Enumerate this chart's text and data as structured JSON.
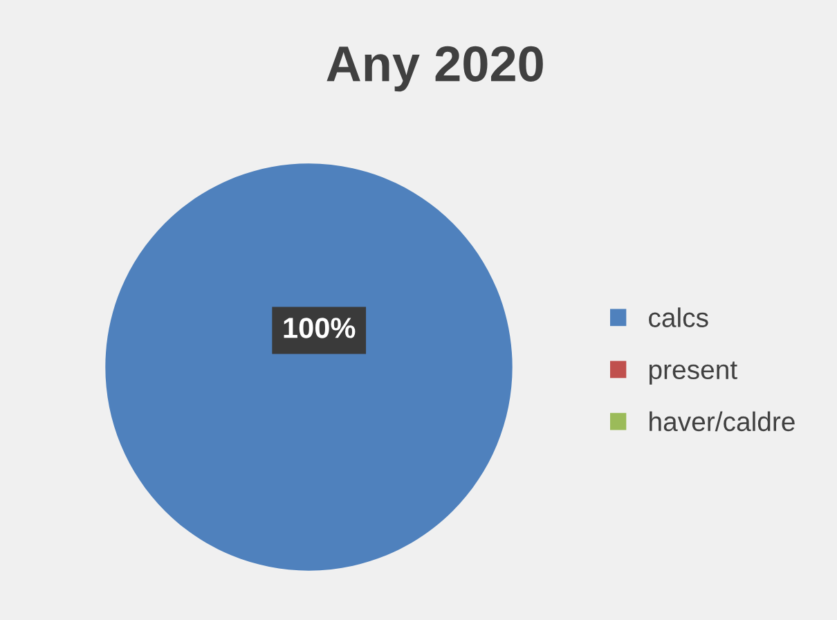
{
  "chart_data": {
    "type": "pie",
    "title": "Any 2020",
    "categories": [
      "calcs",
      "present",
      "haver/caldre"
    ],
    "values": [
      100,
      0,
      0
    ],
    "colors": [
      "#4f81bd",
      "#c0504d",
      "#9bbb59"
    ],
    "value_labels": [
      "100%",
      null,
      null
    ],
    "legend": "right"
  }
}
